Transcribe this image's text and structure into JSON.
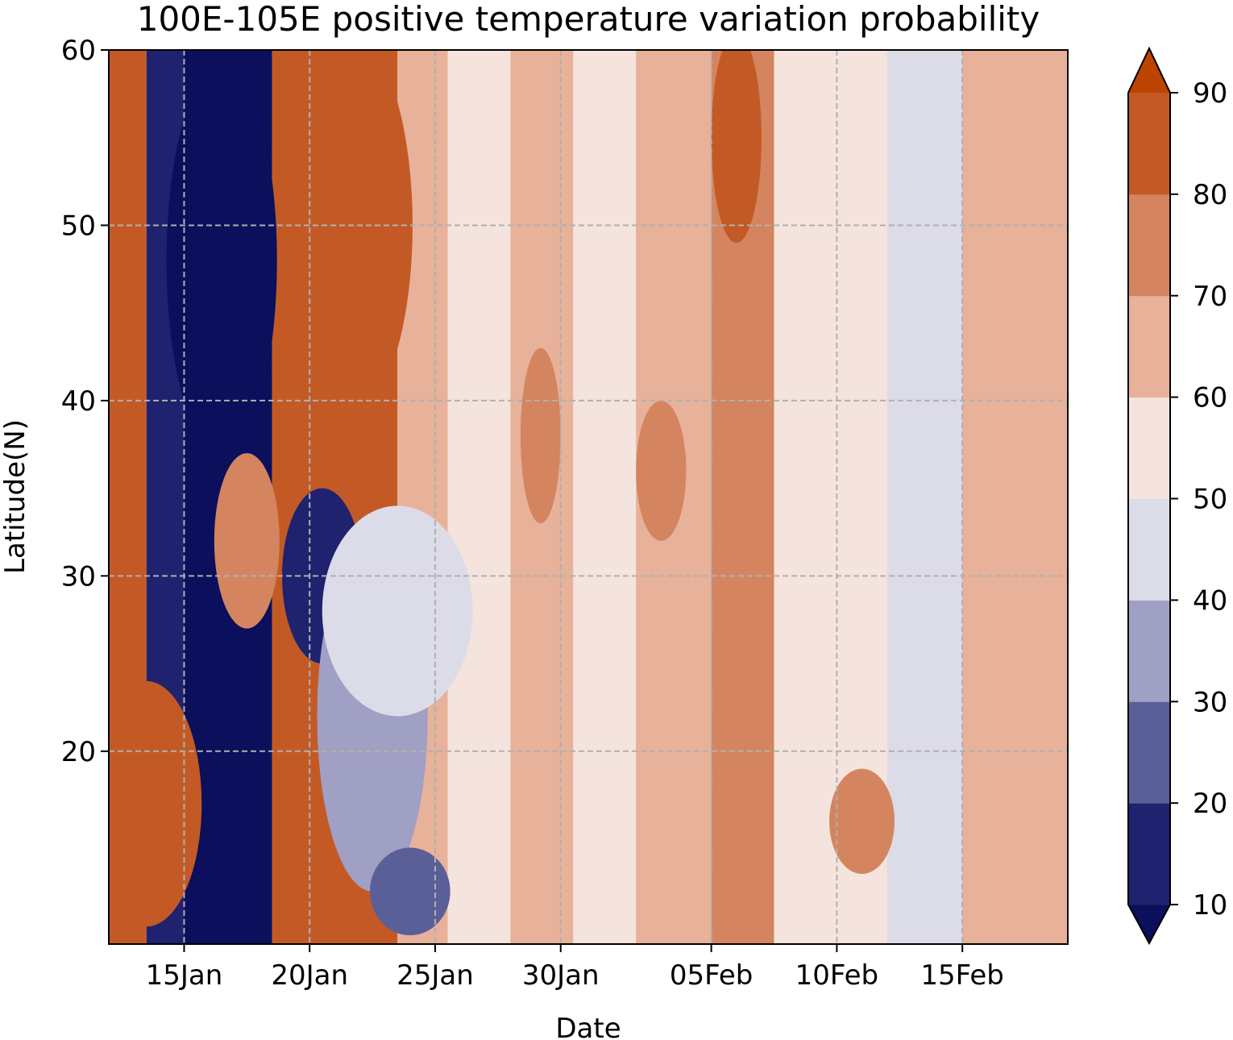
{
  "chart_data": {
    "type": "heatmap",
    "subtype": "filled-contour",
    "title": "100E-105E positive temperature variation probability",
    "xlabel": "Date",
    "ylabel": "Latitude(N)",
    "x_ticks": [
      {
        "label": "15Jan",
        "day": 14
      },
      {
        "label": "20Jan",
        "day": 19
      },
      {
        "label": "25Jan",
        "day": 24
      },
      {
        "label": "30Jan",
        "day": 29
      },
      {
        "label": "05Feb",
        "day": 35
      },
      {
        "label": "10Feb",
        "day": 40
      },
      {
        "label": "15Feb",
        "day": 45
      }
    ],
    "xlim": [
      11,
      49.2
    ],
    "y_ticks": [
      20,
      30,
      40,
      50,
      60
    ],
    "ylim": [
      9,
      60
    ],
    "grid": true,
    "colorbar": {
      "levels": [
        10,
        20,
        30,
        40,
        50,
        60,
        70,
        80,
        90
      ],
      "tick_labels": [
        "10",
        "20",
        "30",
        "40",
        "50",
        "60",
        "70",
        "80",
        "90"
      ],
      "extend": "both",
      "colors": [
        "#0b0f5c",
        "#1f226e",
        "#5a5f98",
        "#a09fc4",
        "#dcdce8",
        "#f5e4dd",
        "#e8b19a",
        "#d4855f",
        "#c35a25",
        "#bd4302"
      ]
    },
    "bands": [
      {
        "name": "band-0",
        "start_day": 11,
        "end_day": 12.5,
        "value": 86
      },
      {
        "name": "band-1",
        "start_day": 12.5,
        "end_day": 14,
        "value": 14
      },
      {
        "name": "band-2",
        "start_day": 14,
        "end_day": 17.5,
        "value": 8
      },
      {
        "name": "band-3",
        "start_day": 17.5,
        "end_day": 22.5,
        "value": 82
      },
      {
        "name": "band-4",
        "start_day": 22.5,
        "end_day": 24.5,
        "value": 65
      },
      {
        "name": "band-5",
        "start_day": 24.5,
        "end_day": 27,
        "value": 58
      },
      {
        "name": "band-6",
        "start_day": 27,
        "end_day": 29.5,
        "value": 62
      },
      {
        "name": "band-7",
        "start_day": 29.5,
        "end_day": 32,
        "value": 56
      },
      {
        "name": "band-8",
        "start_day": 32,
        "end_day": 35,
        "value": 64
      },
      {
        "name": "band-9",
        "start_day": 35,
        "end_day": 37.5,
        "value": 74
      },
      {
        "name": "band-10",
        "start_day": 37.5,
        "end_day": 42,
        "value": 52
      },
      {
        "name": "band-11",
        "start_day": 42,
        "end_day": 45,
        "value": 46
      },
      {
        "name": "band-12",
        "start_day": 45,
        "end_day": 49.2,
        "value": 62
      }
    ],
    "blobs": [
      {
        "name": "blob-dark-blue-upper",
        "day": 15.5,
        "lat": 48,
        "rx_days": 2.2,
        "ry_lat": 11,
        "value": 8
      },
      {
        "name": "blob-dark-red-upper",
        "day": 20.5,
        "lat": 50,
        "rx_days": 2.6,
        "ry_lat": 11,
        "value": 86
      },
      {
        "name": "blob-dark-blue-mid",
        "day": 19.5,
        "lat": 30,
        "rx_days": 1.6,
        "ry_lat": 5,
        "value": 12
      },
      {
        "name": "blob-blue-lower",
        "day": 21.5,
        "lat": 22,
        "rx_days": 2.2,
        "ry_lat": 10,
        "value": 35
      },
      {
        "name": "blob-red-left-lower",
        "day": 12.5,
        "lat": 17,
        "rx_days": 2.2,
        "ry_lat": 7,
        "value": 86
      },
      {
        "name": "blob-red-left-mid",
        "day": 16.5,
        "lat": 32,
        "rx_days": 1.3,
        "ry_lat": 5,
        "value": 78
      },
      {
        "name": "blob-lightblue-mid",
        "day": 22.5,
        "lat": 28,
        "rx_days": 3.0,
        "ry_lat": 6,
        "value": 45
      },
      {
        "name": "blob-blue-bottom",
        "day": 23,
        "lat": 12,
        "rx_days": 1.6,
        "ry_lat": 2.5,
        "value": 28
      },
      {
        "name": "blob-orange-center",
        "day": 28.2,
        "lat": 38,
        "rx_days": 0.8,
        "ry_lat": 5,
        "value": 76
      },
      {
        "name": "blob-orange-feb",
        "day": 33,
        "lat": 36,
        "rx_days": 1.0,
        "ry_lat": 4,
        "value": 74
      },
      {
        "name": "blob-orange-10feb",
        "day": 41,
        "lat": 16,
        "rx_days": 1.3,
        "ry_lat": 3,
        "value": 74
      },
      {
        "name": "blob-lightblue-feb",
        "day": 43,
        "lat": 52,
        "rx_days": 1.0,
        "ry_lat": 7,
        "value": 40
      },
      {
        "name": "blob-orange-feb-top",
        "day": 36,
        "lat": 55,
        "rx_days": 1.0,
        "ry_lat": 6,
        "value": 80
      }
    ]
  }
}
